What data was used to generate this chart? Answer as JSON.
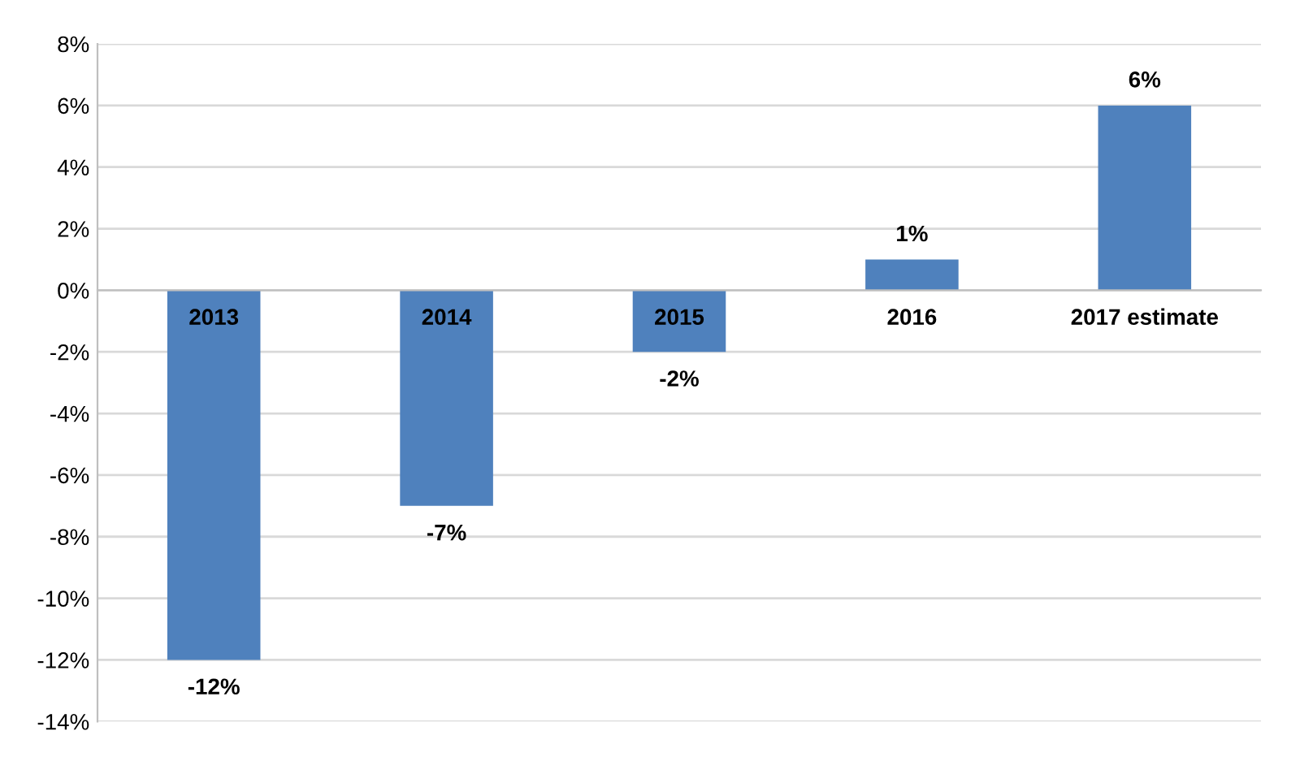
{
  "chart_data": {
    "type": "bar",
    "categories": [
      "2013",
      "2014",
      "2015",
      "2016",
      "2017 estimate"
    ],
    "values": [
      -12,
      -7,
      -2,
      1,
      6
    ],
    "value_labels": [
      "-12%",
      "-7%",
      "-2%",
      "1%",
      "6%"
    ],
    "color": "#4f81bd",
    "ylim": [
      -14,
      8
    ],
    "yticks": [
      {
        "value": 8,
        "label": "8%"
      },
      {
        "value": 6,
        "label": "6%"
      },
      {
        "value": 4,
        "label": "4%"
      },
      {
        "value": 2,
        "label": "2%"
      },
      {
        "value": 0,
        "label": "0%"
      },
      {
        "value": -2,
        "label": "-2%"
      },
      {
        "value": -4,
        "label": "-4%"
      },
      {
        "value": -6,
        "label": "-6%"
      },
      {
        "value": -8,
        "label": "-8%"
      },
      {
        "value": -10,
        "label": "-10%"
      },
      {
        "value": -12,
        "label": "-12%"
      },
      {
        "value": -14,
        "label": "-14%"
      }
    ],
    "grid": "y",
    "legend": false
  }
}
